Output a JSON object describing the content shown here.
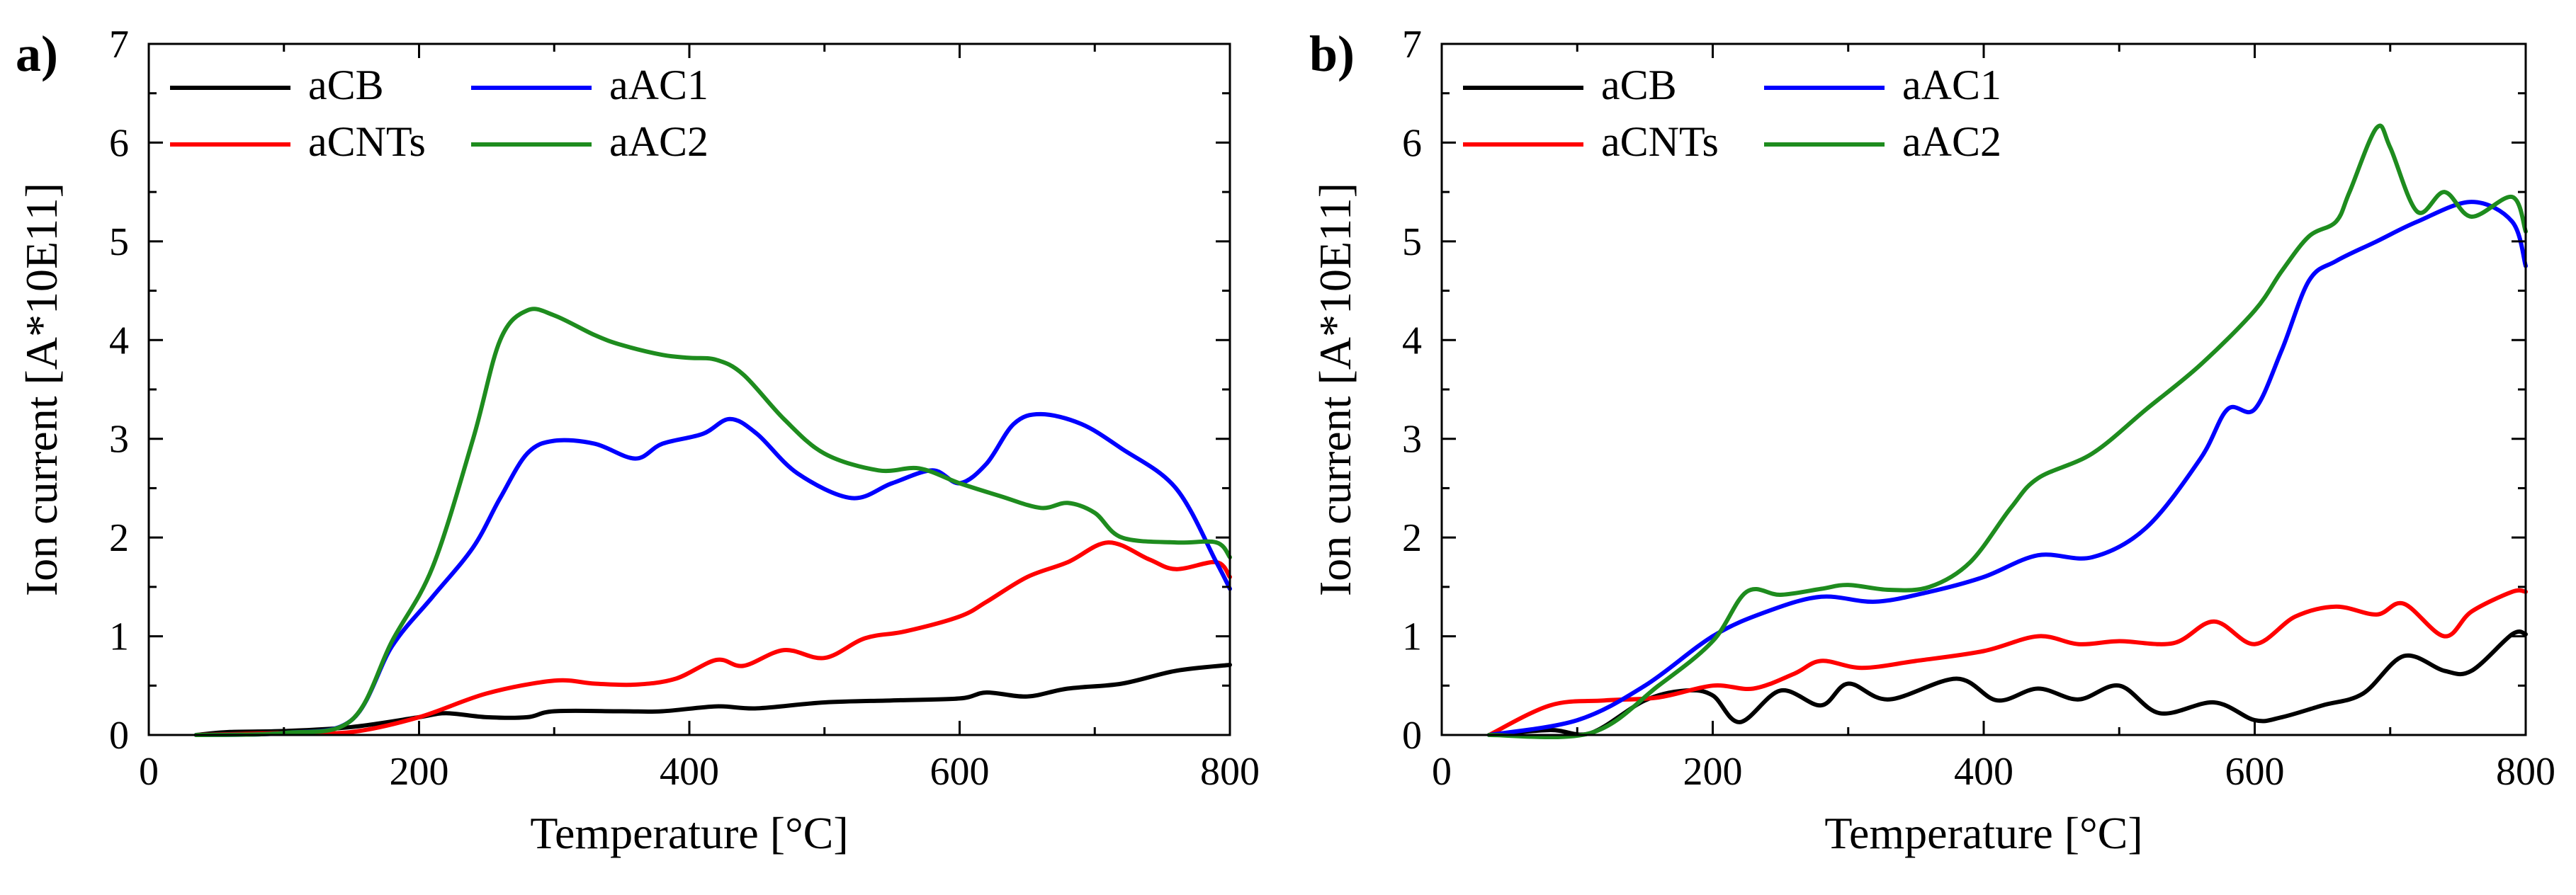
{
  "chart_data": [
    {
      "type": "line",
      "panel_label": "a)",
      "xlabel": "Temperature [°C]",
      "ylabel": "Ion current [A*10E11]",
      "xlim": [
        0,
        800
      ],
      "ylim": [
        0,
        7
      ],
      "xticks": [
        0,
        200,
        400,
        600,
        800
      ],
      "yticks": [
        0,
        1,
        2,
        3,
        4,
        5,
        6,
        7
      ],
      "legend_position": "top-left",
      "series": [
        {
          "name": "aCB",
          "color": "#000000",
          "x": [
            35,
            60,
            100,
            150,
            200,
            220,
            250,
            280,
            300,
            350,
            380,
            420,
            450,
            500,
            550,
            600,
            620,
            650,
            680,
            720,
            760,
            800
          ],
          "y": [
            0,
            0.03,
            0.04,
            0.08,
            0.18,
            0.22,
            0.18,
            0.18,
            0.24,
            0.24,
            0.24,
            0.29,
            0.27,
            0.33,
            0.35,
            0.37,
            0.43,
            0.39,
            0.47,
            0.52,
            0.65,
            0.71
          ]
        },
        {
          "name": "aCNTs",
          "color": "#ff0000",
          "x": [
            35,
            100,
            150,
            200,
            250,
            300,
            330,
            360,
            390,
            420,
            440,
            470,
            500,
            530,
            560,
            600,
            620,
            650,
            680,
            710,
            740,
            760,
            790,
            800
          ],
          "y": [
            0,
            0.02,
            0.03,
            0.18,
            0.42,
            0.55,
            0.52,
            0.51,
            0.57,
            0.76,
            0.7,
            0.86,
            0.78,
            0.98,
            1.05,
            1.2,
            1.35,
            1.6,
            1.75,
            1.95,
            1.78,
            1.68,
            1.75,
            1.6
          ]
        },
        {
          "name": "aAC1",
          "color": "#0000ff",
          "x": [
            35,
            100,
            150,
            180,
            210,
            240,
            260,
            280,
            300,
            330,
            360,
            380,
            410,
            430,
            450,
            480,
            520,
            550,
            580,
            600,
            620,
            640,
            660,
            690,
            720,
            760,
            790,
            800
          ],
          "y": [
            0,
            0.02,
            0.15,
            0.9,
            1.4,
            1.9,
            2.4,
            2.85,
            2.98,
            2.95,
            2.8,
            2.95,
            3.05,
            3.2,
            3.05,
            2.65,
            2.4,
            2.55,
            2.68,
            2.55,
            2.75,
            3.15,
            3.25,
            3.15,
            2.9,
            2.5,
            1.75,
            1.48
          ]
        },
        {
          "name": "aAC2",
          "color": "#1e8c1e",
          "x": [
            35,
            100,
            150,
            180,
            210,
            240,
            260,
            280,
            300,
            330,
            350,
            380,
            400,
            420,
            440,
            470,
            500,
            540,
            570,
            600,
            630,
            660,
            680,
            700,
            720,
            760,
            790,
            800
          ],
          "y": [
            0,
            0.02,
            0.15,
            0.95,
            1.7,
            3.0,
            4.0,
            4.3,
            4.25,
            4.05,
            3.95,
            3.85,
            3.82,
            3.8,
            3.65,
            3.2,
            2.85,
            2.68,
            2.7,
            2.55,
            2.42,
            2.3,
            2.35,
            2.25,
            2.0,
            1.95,
            1.95,
            1.8
          ]
        }
      ]
    },
    {
      "type": "line",
      "panel_label": "b)",
      "xlabel": "Temperature [°C]",
      "ylabel": "Ion current [A*10E11]",
      "xlim": [
        0,
        800
      ],
      "ylim": [
        0,
        7
      ],
      "xticks": [
        0,
        200,
        400,
        600,
        800
      ],
      "yticks": [
        0,
        1,
        2,
        3,
        4,
        5,
        6,
        7
      ],
      "legend_position": "top-left",
      "series": [
        {
          "name": "aCB",
          "color": "#000000",
          "x": [
            35,
            80,
            110,
            150,
            180,
            200,
            220,
            250,
            280,
            300,
            330,
            380,
            410,
            440,
            470,
            500,
            530,
            570,
            600,
            620,
            650,
            680,
            710,
            740,
            760,
            790,
            800
          ],
          "y": [
            0,
            0.05,
            0.02,
            0.35,
            0.45,
            0.4,
            0.13,
            0.45,
            0.3,
            0.52,
            0.36,
            0.57,
            0.35,
            0.47,
            0.36,
            0.5,
            0.22,
            0.33,
            0.15,
            0.18,
            0.3,
            0.42,
            0.8,
            0.65,
            0.65,
            1.02,
            1.02
          ]
        },
        {
          "name": "aCNTs",
          "color": "#ff0000",
          "x": [
            35,
            80,
            120,
            160,
            200,
            230,
            260,
            280,
            310,
            350,
            400,
            440,
            470,
            500,
            540,
            570,
            600,
            630,
            660,
            690,
            710,
            740,
            760,
            790,
            800
          ],
          "y": [
            0,
            0.3,
            0.35,
            0.38,
            0.5,
            0.47,
            0.62,
            0.75,
            0.68,
            0.75,
            0.85,
            1.0,
            0.92,
            0.95,
            0.93,
            1.15,
            0.92,
            1.2,
            1.3,
            1.22,
            1.33,
            1.0,
            1.25,
            1.45,
            1.45
          ]
        },
        {
          "name": "aAC1",
          "color": "#0000ff",
          "x": [
            35,
            100,
            150,
            200,
            240,
            280,
            320,
            360,
            400,
            440,
            480,
            520,
            560,
            580,
            600,
            620,
            640,
            660,
            690,
            720,
            760,
            790,
            800
          ],
          "y": [
            0,
            0.15,
            0.5,
            1.0,
            1.25,
            1.4,
            1.35,
            1.45,
            1.6,
            1.82,
            1.8,
            2.1,
            2.8,
            3.3,
            3.3,
            3.9,
            4.6,
            4.8,
            5.0,
            5.2,
            5.4,
            5.2,
            4.75
          ]
        },
        {
          "name": "aAC2",
          "color": "#1e8c1e",
          "x": [
            35,
            110,
            160,
            200,
            225,
            250,
            280,
            300,
            330,
            360,
            390,
            420,
            440,
            480,
            520,
            560,
            600,
            620,
            640,
            660,
            670,
            690,
            700,
            720,
            740,
            760,
            790,
            800
          ],
          "y": [
            0,
            0.02,
            0.5,
            0.95,
            1.45,
            1.42,
            1.48,
            1.52,
            1.47,
            1.5,
            1.75,
            2.3,
            2.6,
            2.85,
            3.3,
            3.75,
            4.3,
            4.7,
            5.05,
            5.2,
            5.5,
            6.15,
            5.95,
            5.3,
            5.5,
            5.25,
            5.45,
            5.1
          ]
        }
      ]
    }
  ]
}
